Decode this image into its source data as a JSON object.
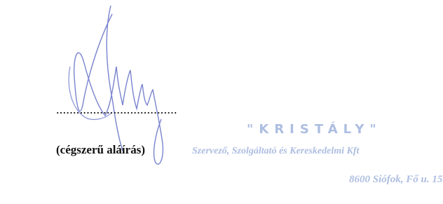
{
  "signature": {
    "line": "....................................",
    "caption": "(cégszerű aláírás)"
  },
  "stamp": {
    "name": "\"KRISTÁLY\"",
    "company": "Szervező, Szolgáltató és Kereskedelmi Kft",
    "address": "8600 Siófok, Fő u. 15."
  }
}
